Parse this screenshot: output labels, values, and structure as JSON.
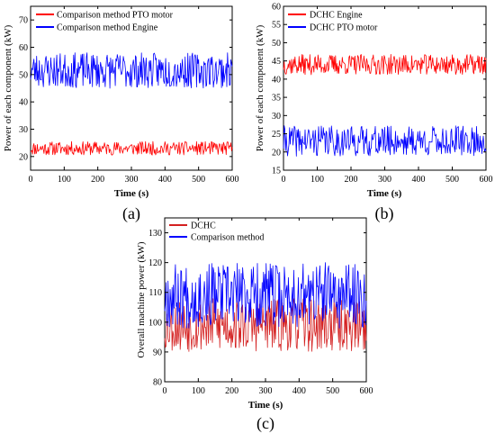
{
  "chart_data": [
    {
      "id": "a",
      "type": "line",
      "caption": "(a)",
      "xlabel": "Time (s)",
      "ylabel": "Power of each component (kW)",
      "xlim": [
        0,
        600
      ],
      "ylim": [
        15,
        75
      ],
      "xticks": [
        0,
        100,
        200,
        300,
        400,
        500,
        600
      ],
      "yticks": [
        20,
        30,
        40,
        50,
        60,
        70
      ],
      "legend_position": "top-left",
      "series": [
        {
          "name": "Comparison method PTO motor",
          "color": "#ff0000",
          "mean": 23,
          "amplitude": 2.5,
          "seed": 11
        },
        {
          "name": "Comparison method Engine",
          "color": "#0000ff",
          "mean": 51.5,
          "amplitude": 6.5,
          "seed": 23
        }
      ]
    },
    {
      "id": "b",
      "type": "line",
      "caption": "(b)",
      "xlabel": "Time (s)",
      "ylabel": "Power of each component (kW)",
      "xlim": [
        0,
        600
      ],
      "ylim": [
        15,
        60
      ],
      "xticks": [
        0,
        100,
        200,
        300,
        400,
        500,
        600
      ],
      "yticks": [
        15,
        20,
        25,
        30,
        35,
        40,
        45,
        50,
        55,
        60
      ],
      "legend_position": "top-left",
      "series": [
        {
          "name": "DCHC Engine",
          "color": "#ff0000",
          "mean": 44,
          "amplitude": 2.8,
          "seed": 37
        },
        {
          "name": "DCHC PTO motor",
          "color": "#0000ff",
          "mean": 23,
          "amplitude": 4.2,
          "seed": 41
        }
      ]
    },
    {
      "id": "c",
      "type": "line",
      "caption": "(c)",
      "xlabel": "Time (s)",
      "ylabel": "Overall machine power (kW)",
      "xlim": [
        0,
        600
      ],
      "ylim": [
        80,
        135
      ],
      "xticks": [
        0,
        100,
        200,
        300,
        400,
        500,
        600
      ],
      "yticks": [
        80,
        90,
        100,
        110,
        120,
        130
      ],
      "legend_position": "top-left",
      "series": [
        {
          "name": "DCHC",
          "color": "#d42020",
          "mean": 99,
          "amplitude": 9,
          "seed": 53
        },
        {
          "name": "Comparison method",
          "color": "#0000ff",
          "mean": 109,
          "amplitude": 11,
          "seed": 67
        }
      ]
    }
  ]
}
